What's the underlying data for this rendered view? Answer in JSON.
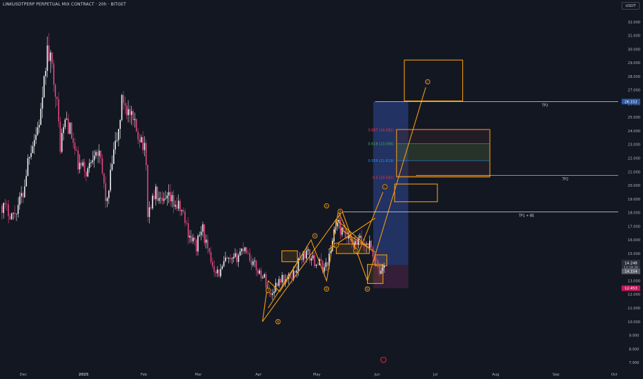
{
  "chart_title": "LINKUSDTPERP PERPETUAL MIX CONTRACT · 20h · BITGET",
  "currency_button": "USDT",
  "colors": {
    "background": "#131722",
    "candle": "#f1f1f3",
    "candle_bear": "#e0487f",
    "orange": "#f39c12",
    "target_line": "#ffffff",
    "profit_zone": "#283c7a",
    "loss_zone": "#3a1f3b",
    "fib_red": "#f23645",
    "fib_green": "#4caf50",
    "fib_blue": "#2196f3",
    "price_label_blue": "#2a5aa8",
    "price_label_red": "#c2185b"
  },
  "chart_data": {
    "type": "candlestick",
    "y_axis": {
      "ticks": [
        "7.000",
        "8.000",
        "9.000",
        "10.000",
        "11.000",
        "12.000",
        "13.000",
        "14.000",
        "15.000",
        "16.000",
        "17.000",
        "18.000",
        "19.000",
        "20.000",
        "21.000",
        "22.000",
        "23.000",
        "24.000",
        "25.000",
        "26.000",
        "27.000",
        "28.000",
        "29.000",
        "30.000",
        "31.000",
        "32.000"
      ],
      "ylim": [
        6.5,
        33.0
      ]
    },
    "x_axis": {
      "ticks": [
        "Dec",
        "2025",
        "Feb",
        "Mar",
        "Apr",
        "May",
        "Jun",
        "Jul",
        "Aug",
        "Sep",
        "Oct"
      ],
      "tick_dates": [
        "2024-12-01",
        "2025-01-01",
        "2025-02-01",
        "2025-03-01",
        "2025-04-01",
        "2025-05-01",
        "2025-06-01",
        "2025-07-01",
        "2025-08-01",
        "2025-09-01",
        "2025-10-01"
      ],
      "xlim": [
        "2024-11-19",
        "2025-10-03"
      ]
    },
    "price_path": [
      [
        "2024-11-20",
        18.5
      ],
      [
        "2024-11-26",
        17.8
      ],
      [
        "2024-12-01",
        19.5
      ],
      [
        "2024-12-04",
        22.5
      ],
      [
        "2024-12-08",
        24.0
      ],
      [
        "2024-12-11",
        26.0
      ],
      [
        "2024-12-13",
        30.0
      ],
      [
        "2024-12-15",
        29.0
      ],
      [
        "2024-12-17",
        28.0
      ],
      [
        "2024-12-20",
        23.0
      ],
      [
        "2024-12-23",
        25.0
      ],
      [
        "2024-12-26",
        23.5
      ],
      [
        "2024-12-29",
        21.5
      ],
      [
        "2025-01-03",
        21.0
      ],
      [
        "2025-01-07",
        23.0
      ],
      [
        "2025-01-10",
        21.5
      ],
      [
        "2025-01-13",
        18.5
      ],
      [
        "2025-01-16",
        22.0
      ],
      [
        "2025-01-19",
        24.0
      ],
      [
        "2025-01-21",
        26.5
      ],
      [
        "2025-01-25",
        25.0
      ],
      [
        "2025-01-28",
        24.0
      ],
      [
        "2025-01-31",
        23.5
      ],
      [
        "2025-02-02",
        22.0
      ],
      [
        "2025-02-03",
        18.0
      ],
      [
        "2025-02-07",
        19.5
      ],
      [
        "2025-02-10",
        18.5
      ],
      [
        "2025-02-14",
        19.0
      ],
      [
        "2025-02-18",
        18.5
      ],
      [
        "2025-02-21",
        18.0
      ],
      [
        "2025-02-24",
        16.5
      ],
      [
        "2025-02-28",
        15.5
      ],
      [
        "2025-03-03",
        17.0
      ],
      [
        "2025-03-06",
        15.0
      ],
      [
        "2025-03-09",
        14.0
      ],
      [
        "2025-03-12",
        13.5
      ],
      [
        "2025-03-15",
        14.5
      ],
      [
        "2025-03-18",
        14.3
      ],
      [
        "2025-03-21",
        14.8
      ],
      [
        "2025-03-25",
        15.6
      ],
      [
        "2025-03-28",
        14.5
      ],
      [
        "2025-04-01",
        13.7
      ],
      [
        "2025-04-04",
        13.2
      ],
      [
        "2025-04-07",
        11.8
      ],
      [
        "2025-04-09",
        12.5
      ],
      [
        "2025-04-12",
        13.2
      ],
      [
        "2025-04-15",
        13.0
      ],
      [
        "2025-04-19",
        13.5
      ],
      [
        "2025-04-23",
        14.8
      ],
      [
        "2025-04-26",
        15.0
      ],
      [
        "2025-04-29",
        14.5
      ],
      [
        "2025-05-02",
        14.3
      ],
      [
        "2025-05-05",
        13.9
      ],
      [
        "2025-05-08",
        15.0
      ],
      [
        "2025-05-10",
        17.0
      ],
      [
        "2025-05-12",
        17.2
      ],
      [
        "2025-05-14",
        16.5
      ],
      [
        "2025-05-17",
        16.0
      ],
      [
        "2025-05-20",
        15.5
      ],
      [
        "2025-05-23",
        16.0
      ],
      [
        "2025-05-26",
        15.5
      ],
      [
        "2025-05-28",
        15.8
      ],
      [
        "2025-05-31",
        14.5
      ],
      [
        "2025-06-02",
        13.6
      ],
      [
        "2025-06-04",
        14.0
      ],
      [
        "2025-06-05",
        14.2
      ]
    ],
    "current_price": "14.248",
    "countdown": "12:19:39",
    "price_labels": [
      {
        "text": "26.152",
        "value": 26.152,
        "style": "blue"
      },
      {
        "text": "14.154",
        "value": 14.154,
        "style": "gray"
      },
      {
        "text": "12.453",
        "value": 12.453,
        "style": "red"
      }
    ],
    "target_lines": [
      {
        "label": "TP3",
        "value": 26.152,
        "from": "2025-05-31"
      },
      {
        "label": "TP2",
        "value": 20.74,
        "from": "2025-06-21"
      },
      {
        "label": "TP1 + BE",
        "value": 18.05,
        "from": "2025-05-12"
      }
    ],
    "fib_levels": [
      {
        "label": "0.667 (24.082)",
        "value": 24.082,
        "color": "red"
      },
      {
        "label": "0.618 (23.056)",
        "value": 23.056,
        "color": "green"
      },
      {
        "label": "0.559 (21.819)",
        "value": 21.819,
        "color": "blue"
      },
      {
        "label": "0.5 (20.583)",
        "value": 20.583,
        "color": "red"
      }
    ],
    "zones": [
      {
        "kind": "target-box",
        "from": "2025-06-15",
        "to": "2025-07-15",
        "low": 26.2,
        "high": 29.2
      },
      {
        "kind": "fib-box",
        "from": "2025-06-11",
        "to": "2025-07-29",
        "low": 20.65,
        "high": 24.1
      },
      {
        "kind": "target-box",
        "from": "2025-06-10",
        "to": "2025-07-02",
        "low": 18.8,
        "high": 20.1
      },
      {
        "kind": "entry-box",
        "from": "2025-05-27",
        "to": "2025-06-04",
        "low": 12.8,
        "high": 14.2
      },
      {
        "kind": "entry-box",
        "from": "2025-04-13",
        "to": "2025-04-21",
        "low": 14.4,
        "high": 15.2
      },
      {
        "kind": "entry-box",
        "from": "2025-05-11",
        "to": "2025-05-28",
        "low": 15.0,
        "high": 15.7
      },
      {
        "kind": "entry-box",
        "from": "2025-05-31",
        "to": "2025-06-06",
        "low": 14.1,
        "high": 14.9
      }
    ],
    "position": {
      "from": "2025-05-30",
      "to": "2025-06-17",
      "entry": 14.154,
      "target": 26.152,
      "stop": 12.453
    },
    "wave_paths": [
      [
        [
          "2025-04-03",
          10.0
        ],
        [
          "2025-04-06",
          13.0
        ],
        [
          "2025-04-12",
          12.2
        ],
        [
          "2025-04-28",
          16.0
        ],
        [
          "2025-05-06",
          13.0
        ],
        [
          "2025-05-12",
          18.1
        ],
        [
          "2025-05-22",
          14.9
        ],
        [
          "2025-06-04",
          19.5
        ]
      ],
      [
        [
          "2025-04-03",
          10.0
        ],
        [
          "2025-05-14",
          18.1
        ],
        [
          "2025-05-27",
          13.0
        ],
        [
          "2025-06-26",
          27.2
        ]
      ],
      [
        [
          "2025-04-06",
          11.0
        ],
        [
          "2025-04-26",
          15.5
        ]
      ],
      [
        [
          "2025-05-07",
          15.3
        ],
        [
          "2025-05-31",
          17.6
        ]
      ],
      [
        [
          "2025-05-11",
          17.5
        ],
        [
          "2025-05-27",
          15.5
        ]
      ],
      [
        [
          "2025-05-13",
          16.8
        ],
        [
          "2025-05-31",
          15.1
        ]
      ]
    ],
    "wave_labels": [
      {
        "text": "A",
        "date": "2025-04-06",
        "value": 12.3
      },
      {
        "text": "B",
        "date": "2025-04-11",
        "value": 10.0
      },
      {
        "text": "A",
        "date": "2025-04-30",
        "value": 16.3
      },
      {
        "text": "B",
        "date": "2025-05-06",
        "value": 12.4
      },
      {
        "text": "A",
        "date": "2025-05-06",
        "value": 18.5
      },
      {
        "text": "B",
        "date": "2025-05-13",
        "value": 18.1
      },
      {
        "text": "C",
        "date": "2025-06-05",
        "value": 19.9
      },
      {
        "text": "B",
        "date": "2025-05-27",
        "value": 12.4
      },
      {
        "text": "C",
        "date": "2025-06-27",
        "value": 27.6
      },
      {
        "text": "A",
        "date": "2025-05-11",
        "value": 15.6
      },
      {
        "text": "B",
        "date": "2025-05-21",
        "value": 15.2
      }
    ],
    "event_marker": {
      "date": "2025-05-31",
      "value": 7.2
    }
  }
}
